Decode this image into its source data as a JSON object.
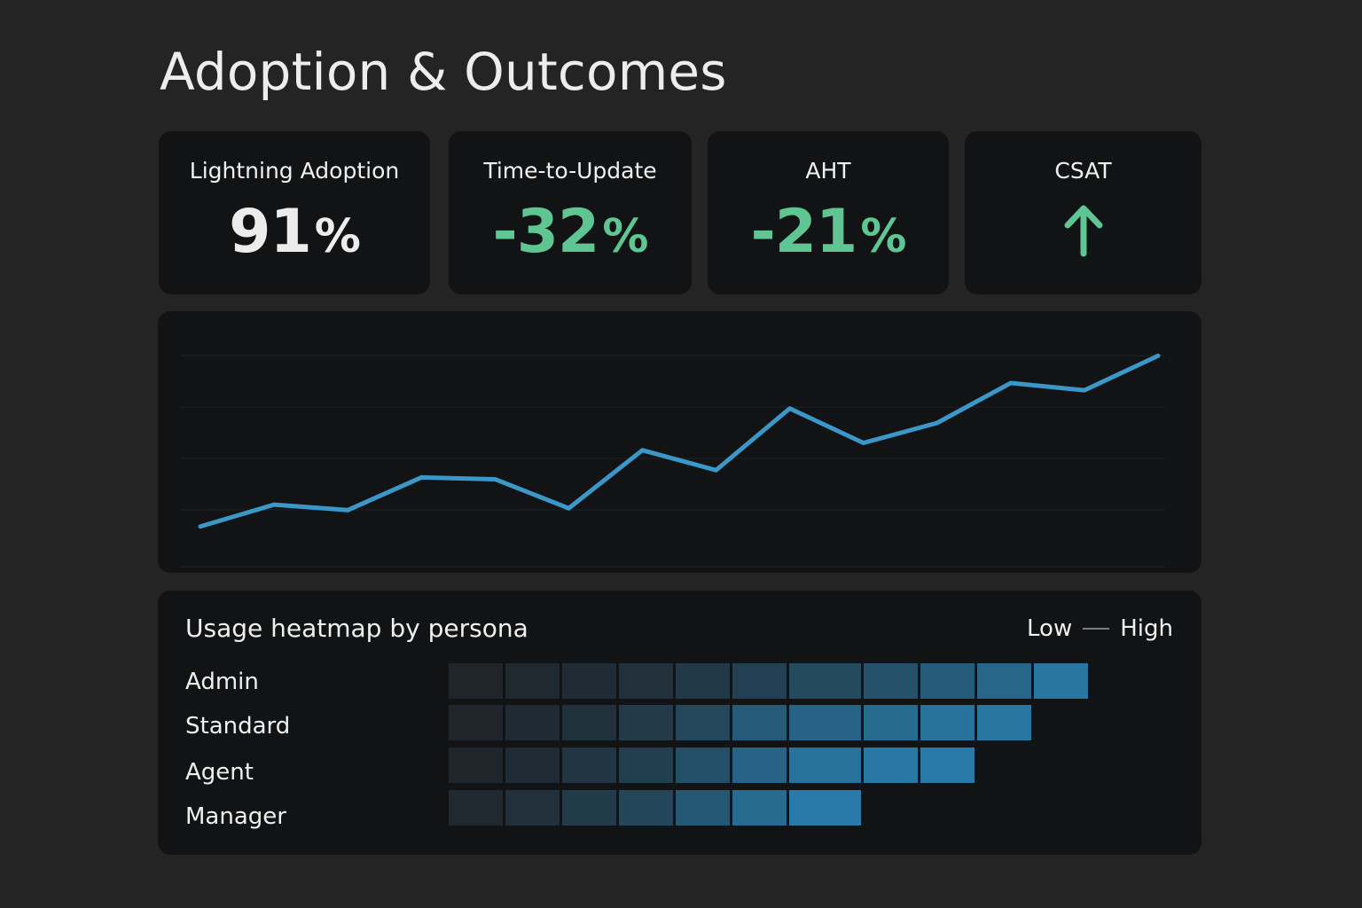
{
  "page": {
    "title": "Adoption & Outcomes"
  },
  "kpis": [
    {
      "label": "Lightning Adoption",
      "value": "91",
      "unit": "%",
      "tone": "neutral"
    },
    {
      "label": "Time-to-Update",
      "value": "-32",
      "unit": "%",
      "tone": "positive"
    },
    {
      "label": "AHT",
      "value": "-21",
      "unit": "%",
      "tone": "positive"
    },
    {
      "label": "CSAT",
      "icon": "arrow-up-icon",
      "tone": "positive"
    }
  ],
  "colors": {
    "background": "#242424",
    "card": "#121314",
    "positive": "#5fc592",
    "line": "#3b97c8",
    "heat_low": "#1f2327",
    "heat_high": "#2a7faf"
  },
  "chart_data": {
    "type": "line",
    "grid": true,
    "series": [
      {
        "values": [
          6,
          18,
          15,
          33,
          32,
          16,
          48,
          37,
          71,
          52,
          63,
          85,
          81,
          100
        ]
      }
    ],
    "ylim": [
      0,
      105
    ]
  },
  "heatmap": {
    "title": "Usage heatmap by persona",
    "legend_low": "Low",
    "legend_high": "High",
    "rows": [
      {
        "label": "Admin",
        "intensities": [
          0.02,
          0.06,
          0.1,
          0.14,
          0.24,
          0.32,
          0.42,
          0.5,
          0.62,
          0.72,
          0.9
        ]
      },
      {
        "label": "Standard",
        "intensities": [
          0.02,
          0.08,
          0.15,
          0.25,
          0.4,
          0.6,
          0.7,
          0.78,
          0.86,
          0.9
        ]
      },
      {
        "label": "Agent",
        "intensities": [
          0.03,
          0.1,
          0.2,
          0.3,
          0.48,
          0.7,
          0.85,
          0.92,
          0.95
        ]
      },
      {
        "label": "Manager",
        "intensities": [
          0.06,
          0.14,
          0.26,
          0.38,
          0.55,
          0.78,
          0.95
        ]
      }
    ]
  }
}
